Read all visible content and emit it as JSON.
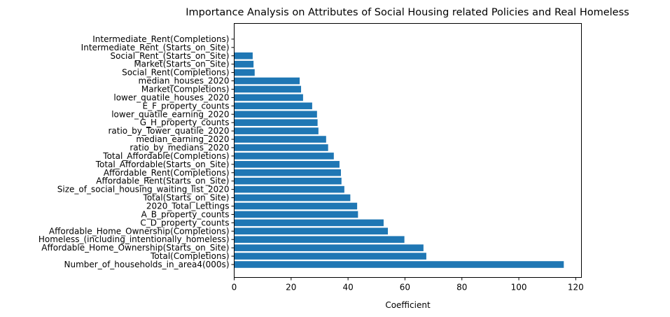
{
  "chart_data": {
    "type": "bar",
    "orientation": "horizontal",
    "title": "Importance Analysis on Attributes of Social Housing related Policies and Real Homeless",
    "xlabel": "Coefficient",
    "ylabel": "",
    "xlim": [
      0,
      122
    ],
    "xticks": [
      0,
      20,
      40,
      60,
      80,
      100,
      120
    ],
    "grid": false,
    "color": "#1f77b4",
    "categories": [
      "Number_of_households_in_area4(000s)",
      "Total(Completions)",
      "Affordable_Home_Ownership(Starts_on_Site)",
      "Homeless_(including_intentionally_homeless)",
      "Affordable_Home_Ownership(Completions)",
      "C_D_property_counts",
      "A_B_property_counts",
      "2020_Total_Lettings",
      "Total(Starts_on_Site)",
      "Size_of_social_housing_waiting_list_2020",
      "Affordable_Rent(Starts_on_Site)",
      "Affordable_Rent(Completions)",
      "Total_Affordable(Starts_on_Site)",
      "Total_Affordable(Completions)",
      "ratio_by_medians_2020",
      "median_earning_2020",
      "ratio_by_Tower_quatile_2020",
      "G_H_property_counts",
      "lower_quatile_earning_2020",
      "E_F_property_counts",
      "lower_quatile_houses_2020",
      "Market(Completions)",
      "median_houses_2020",
      "Social_Rent(Completions)",
      "Market(Starts_on_Site)",
      "Social_Rent_(Starts_on_Site)",
      "Intermediate_Rent_(Starts_on_Site)",
      "Intermediate_Rent(Completions)"
    ],
    "values": [
      115.8,
      67.5,
      66.5,
      59.8,
      54.0,
      52.5,
      43.5,
      43.2,
      40.8,
      38.7,
      37.7,
      37.5,
      37.0,
      35.0,
      33.0,
      32.3,
      29.6,
      29.3,
      29.1,
      27.4,
      24.2,
      23.5,
      23.0,
      7.2,
      6.8,
      6.5,
      0.0,
      0.0
    ]
  }
}
